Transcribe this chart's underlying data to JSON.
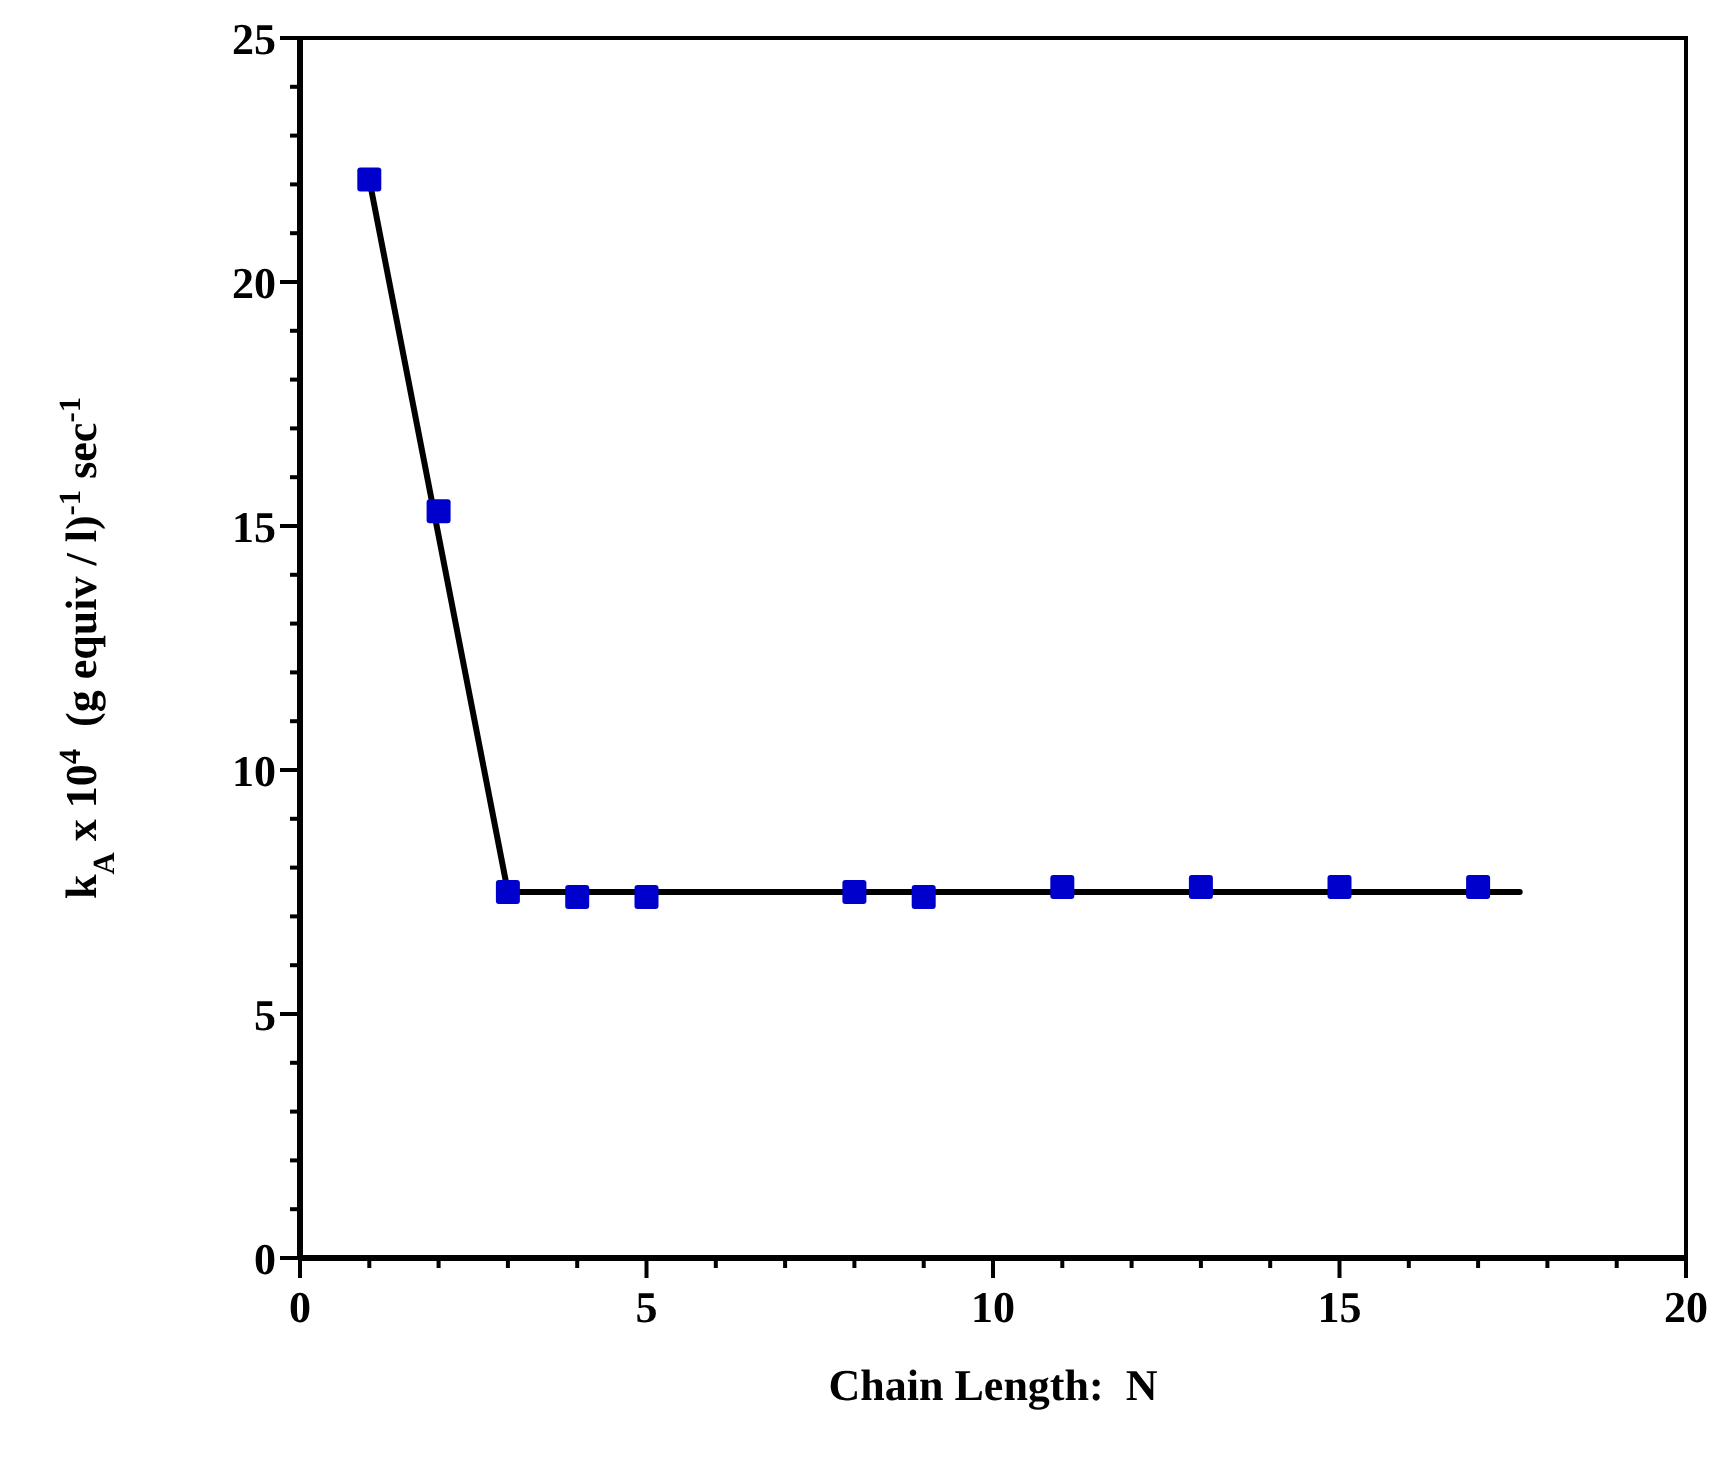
{
  "chart_data": {
    "type": "scatter",
    "xlabel": "Chain Length:  N",
    "ylabel": "k$_{A}$ x 10$^{4}$  (g equiv / l)$^{-1}$ sec$^{-1}$",
    "xlim": [
      0,
      20
    ],
    "xticks": [
      0,
      5,
      10,
      15,
      20
    ],
    "ylim": [
      0,
      25
    ],
    "yticks": [
      0,
      5,
      10,
      15,
      20,
      25
    ],
    "grid": false,
    "series": [
      {
        "color": "#0000cc",
        "marker": "square",
        "x": [
          1,
          2,
          3,
          4,
          5,
          8,
          9,
          11,
          13,
          15,
          17
        ],
        "values": [
          22.1,
          15.3,
          7.5,
          7.4,
          7.4,
          7.5,
          7.4,
          7.6,
          7.6,
          7.6,
          7.6
        ]
      },
      {
        "type": "line",
        "color": "#000000",
        "marker": "none",
        "line_style": "solid",
        "x": [
          1,
          3,
          17.6
        ],
        "values": [
          22.1,
          7.5,
          7.5
        ]
      }
    ]
  }
}
